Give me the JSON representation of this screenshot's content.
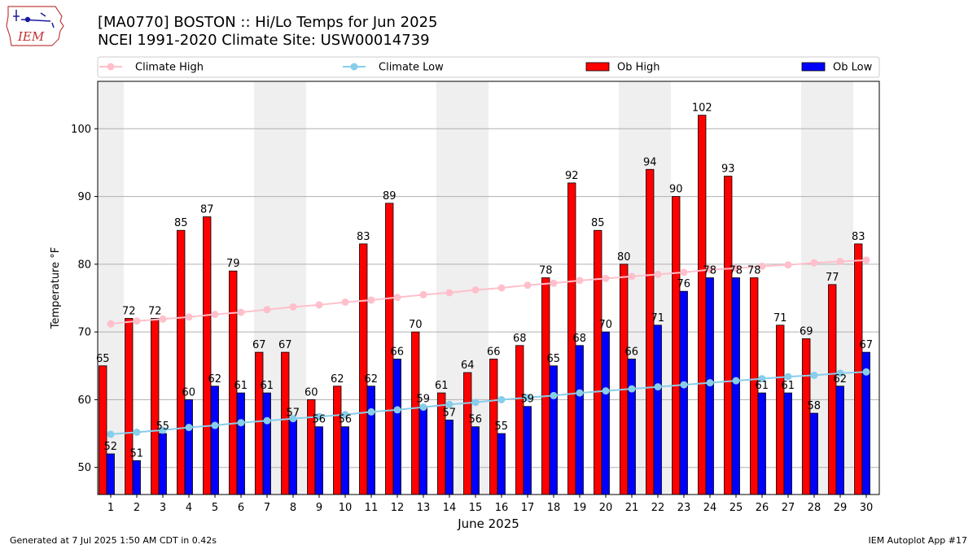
{
  "header": {
    "title_line1": "[MA0770] BOSTON :: Hi/Lo Temps for Jun 2025",
    "title_line2": "NCEI 1991-2020 Climate Site: USW00014739"
  },
  "logo": {
    "text": "IEM",
    "icon": "iem-iowa-weather-logo"
  },
  "footer": {
    "generated": "Generated at 7 Jul 2025 1:50 AM CDT in 0.42s",
    "app": "IEM Autoplot App #17"
  },
  "colors": {
    "ob_high": "#ff0000",
    "ob_low": "#0000ff",
    "climate_high": "#ffc0cb",
    "climate_low": "#87ceeb",
    "weekend_band": "#efefef",
    "grid": "#b0b0b0"
  },
  "chart_data": {
    "type": "bar",
    "xlabel": "June 2025",
    "ylabel": "Temperature °F",
    "ylim": [
      46,
      107
    ],
    "yticks": [
      50,
      60,
      70,
      80,
      90,
      100
    ],
    "grid": "horizontal",
    "legend_position": "top",
    "categories": [
      "1",
      "2",
      "3",
      "4",
      "5",
      "6",
      "7",
      "8",
      "9",
      "10",
      "11",
      "12",
      "13",
      "14",
      "15",
      "16",
      "17",
      "18",
      "19",
      "20",
      "21",
      "22",
      "23",
      "24",
      "25",
      "26",
      "27",
      "28",
      "29",
      "30"
    ],
    "weekend_days": [
      1,
      7,
      8,
      14,
      15,
      21,
      22,
      28,
      29
    ],
    "series": [
      {
        "name": "Ob High",
        "kind": "bar",
        "values": [
          65,
          72,
          72,
          85,
          87,
          79,
          67,
          67,
          60,
          62,
          83,
          89,
          70,
          61,
          64,
          66,
          68,
          78,
          92,
          85,
          80,
          94,
          90,
          102,
          93,
          78,
          71,
          69,
          77,
          83
        ]
      },
      {
        "name": "Ob Low",
        "kind": "bar",
        "values": [
          52,
          51,
          55,
          60,
          62,
          61,
          61,
          57,
          56,
          56,
          62,
          66,
          59,
          57,
          56,
          55,
          59,
          65,
          68,
          70,
          66,
          71,
          76,
          78,
          78,
          61,
          61,
          58,
          62,
          67
        ]
      },
      {
        "name": "Climate High",
        "kind": "line",
        "values": [
          71.2,
          71.6,
          71.9,
          72.2,
          72.6,
          72.9,
          73.3,
          73.7,
          74.0,
          74.4,
          74.7,
          75.1,
          75.5,
          75.8,
          76.2,
          76.5,
          76.9,
          77.2,
          77.6,
          77.9,
          78.2,
          78.5,
          78.8,
          79.2,
          79.4,
          79.7,
          79.9,
          80.2,
          80.4,
          80.6
        ]
      },
      {
        "name": "Climate Low",
        "kind": "line",
        "values": [
          54.9,
          55.2,
          55.5,
          55.9,
          56.2,
          56.6,
          56.9,
          57.2,
          57.5,
          57.8,
          58.2,
          58.5,
          58.9,
          59.3,
          59.6,
          60.0,
          60.3,
          60.6,
          61.0,
          61.3,
          61.6,
          61.9,
          62.2,
          62.5,
          62.8,
          63.1,
          63.4,
          63.6,
          63.9,
          64.1
        ]
      }
    ]
  }
}
